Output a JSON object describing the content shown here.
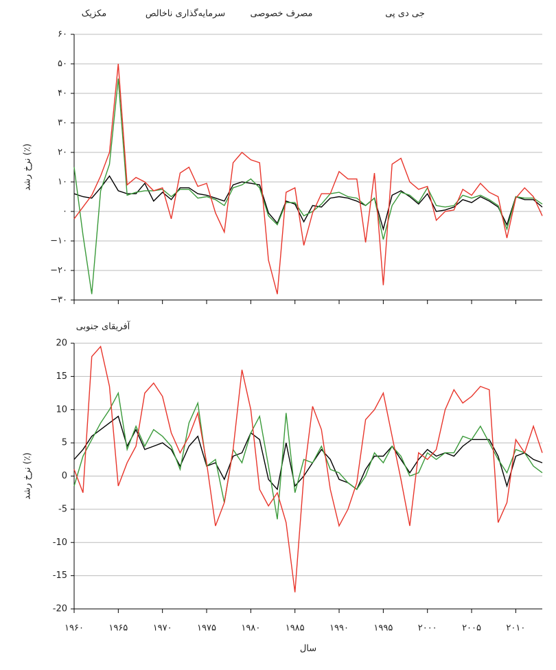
{
  "chart_data": [
    {
      "type": "line",
      "title": "مکزیک",
      "ylabel": "نرخ رشد (٪)",
      "x": [
        1960,
        1961,
        1962,
        1963,
        1964,
        1965,
        1966,
        1967,
        1968,
        1969,
        1970,
        1971,
        1972,
        1973,
        1974,
        1975,
        1976,
        1977,
        1978,
        1979,
        1980,
        1981,
        1982,
        1983,
        1984,
        1985,
        1986,
        1987,
        1988,
        1989,
        1990,
        1991,
        1992,
        1993,
        1994,
        1995,
        1996,
        1997,
        1998,
        1999,
        2000,
        2001,
        2002,
        2003,
        2004,
        2005,
        2006,
        2007,
        2008,
        2009,
        2010,
        2011,
        2012,
        2013
      ],
      "xlim": [
        1960,
        2013
      ],
      "ylim": [
        -30,
        60
      ],
      "yticks": [
        {
          "value": 60,
          "label": "۶۰"
        },
        {
          "value": 50,
          "label": "۵۰"
        },
        {
          "value": 40,
          "label": "۴۰"
        },
        {
          "value": 30,
          "label": "۳۰"
        },
        {
          "value": 20,
          "label": "۲۰"
        },
        {
          "value": 10,
          "label": "۱۰"
        },
        {
          "value": 0,
          "label": "۰"
        },
        {
          "value": -10,
          "label": "−۱۰"
        },
        {
          "value": -20,
          "label": "−۲۰"
        },
        {
          "value": -30,
          "label": "−۳۰"
        }
      ],
      "grid": true,
      "series": [
        {
          "name": "جی دی پی",
          "color": "#000000",
          "values": [
            6,
            5,
            4.5,
            8,
            12,
            7,
            6,
            6,
            9.5,
            3.5,
            6.5,
            4,
            8,
            8,
            6,
            5.5,
            4.5,
            3.5,
            9,
            10,
            9.5,
            9,
            -0.5,
            -4,
            3.5,
            2.5,
            -3.5,
            2,
            1.5,
            4.5,
            5,
            4.5,
            3.5,
            2,
            4.5,
            -6,
            5.5,
            7,
            5,
            2.5,
            6,
            0,
            0.5,
            1.5,
            4,
            3,
            5,
            3.5,
            1.5,
            -4.5,
            5,
            4,
            4,
            1.5
          ]
        },
        {
          "name": "مصرف خصوصی",
          "color": "#3a9a3a",
          "values": [
            15,
            -8,
            -28,
            7,
            16,
            45,
            5.5,
            6.5,
            7,
            7,
            7.5,
            5,
            7.5,
            7.5,
            4.5,
            5,
            4,
            2,
            8,
            9,
            11,
            8,
            -1.5,
            -4.5,
            3,
            3,
            -1.5,
            0,
            2.5,
            6,
            6.5,
            5,
            4.5,
            2,
            4.5,
            -9.5,
            2,
            6.5,
            5.5,
            3,
            8,
            2,
            1.5,
            2,
            5.5,
            4.5,
            5.5,
            4,
            2,
            -6,
            5,
            4.5,
            4.5,
            2.5
          ]
        },
        {
          "name": "سرمایه‌گذاری ناخالص",
          "color": "#e8352b",
          "values": [
            -2.5,
            1.5,
            5.5,
            12,
            20,
            50,
            9,
            11.5,
            10,
            7,
            8,
            -2.5,
            13,
            15,
            8.5,
            9.5,
            -0.5,
            -7,
            16.5,
            20,
            17.5,
            16.5,
            -16.5,
            -28,
            6.5,
            8,
            -11.5,
            -0.5,
            6,
            6,
            13.5,
            11,
            11,
            -10.5,
            13,
            -25,
            16,
            18,
            10,
            7.5,
            8.5,
            -3,
            0,
            0.5,
            7.5,
            5.5,
            9.5,
            6.5,
            5,
            -9,
            4.5,
            8,
            5,
            -1.5
          ]
        }
      ]
    },
    {
      "type": "line",
      "title": "آفریقای جنوبی",
      "ylabel": "نرخ رشد (٪)",
      "xlabel": "سال",
      "x": [
        1960,
        1961,
        1962,
        1963,
        1964,
        1965,
        1966,
        1967,
        1968,
        1969,
        1970,
        1971,
        1972,
        1973,
        1974,
        1975,
        1976,
        1977,
        1978,
        1979,
        1980,
        1981,
        1982,
        1983,
        1984,
        1985,
        1986,
        1987,
        1988,
        1989,
        1990,
        1991,
        1992,
        1993,
        1994,
        1995,
        1996,
        1997,
        1998,
        1999,
        2000,
        2001,
        2002,
        2003,
        2004,
        2005,
        2006,
        2007,
        2008,
        2009,
        2010,
        2011,
        2012,
        2013
      ],
      "xlim": [
        1960,
        2013
      ],
      "xticks": [
        {
          "value": 1960,
          "label": "۱۹۶۰"
        },
        {
          "value": 1965,
          "label": "۱۹۶۵"
        },
        {
          "value": 1970,
          "label": "۱۹۷۰"
        },
        {
          "value": 1975,
          "label": "۱۹۷۵"
        },
        {
          "value": 1980,
          "label": "۱۹۸۰"
        },
        {
          "value": 1985,
          "label": "۱۹۸۵"
        },
        {
          "value": 1990,
          "label": "۱۹۹۰"
        },
        {
          "value": 1995,
          "label": "۱۹۹۵"
        },
        {
          "value": 2000,
          "label": "۲۰۰۰"
        },
        {
          "value": 2005,
          "label": "۲۰۰۵"
        },
        {
          "value": 2010,
          "label": "۲۰۱۰"
        }
      ],
      "ylim": [
        -20,
        20
      ],
      "yticks": [
        20,
        15,
        10,
        5,
        0,
        -5,
        -10,
        -15,
        -20
      ],
      "grid": true,
      "series": [
        {
          "color": "#000000",
          "values": [
            2.5,
            4,
            6,
            7,
            8,
            9,
            4.5,
            7,
            4,
            4.5,
            5,
            4,
            1.5,
            4.5,
            6,
            1.5,
            2,
            -0.5,
            3,
            3.5,
            6.5,
            5.5,
            -0.5,
            -2,
            5,
            -1.5,
            0,
            2,
            4,
            2.5,
            -0.5,
            -1,
            -2,
            1,
            3,
            3,
            4.5,
            2.5,
            0.5,
            2.5,
            4,
            3,
            3.5,
            3,
            4.5,
            5.5,
            5.5,
            5.5,
            3,
            -1.5,
            3,
            3.5,
            2.5,
            2
          ]
        },
        {
          "color": "#3a9a3a",
          "values": [
            -1.5,
            3,
            5.5,
            8,
            10,
            12.5,
            4,
            7.5,
            4.5,
            7,
            6,
            4.5,
            1,
            8,
            11,
            1.5,
            2.5,
            -4,
            4,
            2,
            6.5,
            9,
            1.5,
            -6.5,
            9.5,
            -2.5,
            2.5,
            2,
            4.5,
            1,
            0.5,
            -1,
            -2,
            0,
            3.5,
            2,
            4.5,
            3,
            0,
            0.5,
            3.5,
            2.5,
            3.5,
            3.5,
            6,
            5.5,
            7.5,
            5,
            2.5,
            0.5,
            4,
            3.5,
            1.5,
            0.5
          ]
        },
        {
          "color": "#e8352b",
          "values": [
            1,
            -2.5,
            18,
            19.5,
            13.5,
            -1.5,
            2,
            4.5,
            12.5,
            14,
            12,
            6.5,
            3.5,
            6,
            9.5,
            2,
            -7.5,
            -4,
            4,
            16,
            10,
            -2,
            -4.5,
            -2.5,
            -7,
            -17.5,
            0,
            10.5,
            7,
            -2,
            -7.5,
            -5,
            -1,
            8.5,
            10,
            12.5,
            6,
            -0.5,
            -7.5,
            3.5,
            2.5,
            4,
            10,
            13,
            11,
            12,
            13.5,
            13,
            -7,
            -4,
            5.5,
            3.5,
            7.5,
            3.5
          ]
        }
      ]
    }
  ]
}
